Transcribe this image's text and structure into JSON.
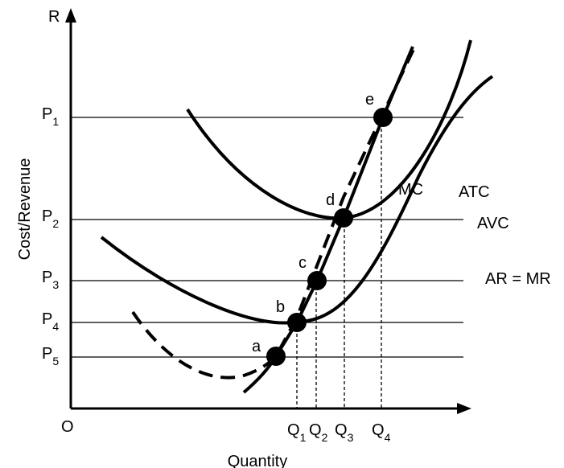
{
  "axes": {
    "y_label": "R",
    "y_title": "Cost/Revenue",
    "origin": "O",
    "x_title": "Quantity"
  },
  "price_levels": [
    {
      "label": "P",
      "sub": "1"
    },
    {
      "label": "P",
      "sub": "2"
    },
    {
      "label": "P",
      "sub": "3"
    },
    {
      "label": "P",
      "sub": "4"
    },
    {
      "label": "P",
      "sub": "5"
    }
  ],
  "quantity_levels": [
    {
      "label": "Q",
      "sub": "1"
    },
    {
      "label": "Q",
      "sub": "2"
    },
    {
      "label": "Q",
      "sub": "3"
    },
    {
      "label": "Q",
      "sub": "4"
    }
  ],
  "curves": [
    "MC",
    "ATC",
    "AVC",
    "AR = MR"
  ],
  "points": [
    "a",
    "b",
    "c",
    "d",
    "e"
  ]
}
